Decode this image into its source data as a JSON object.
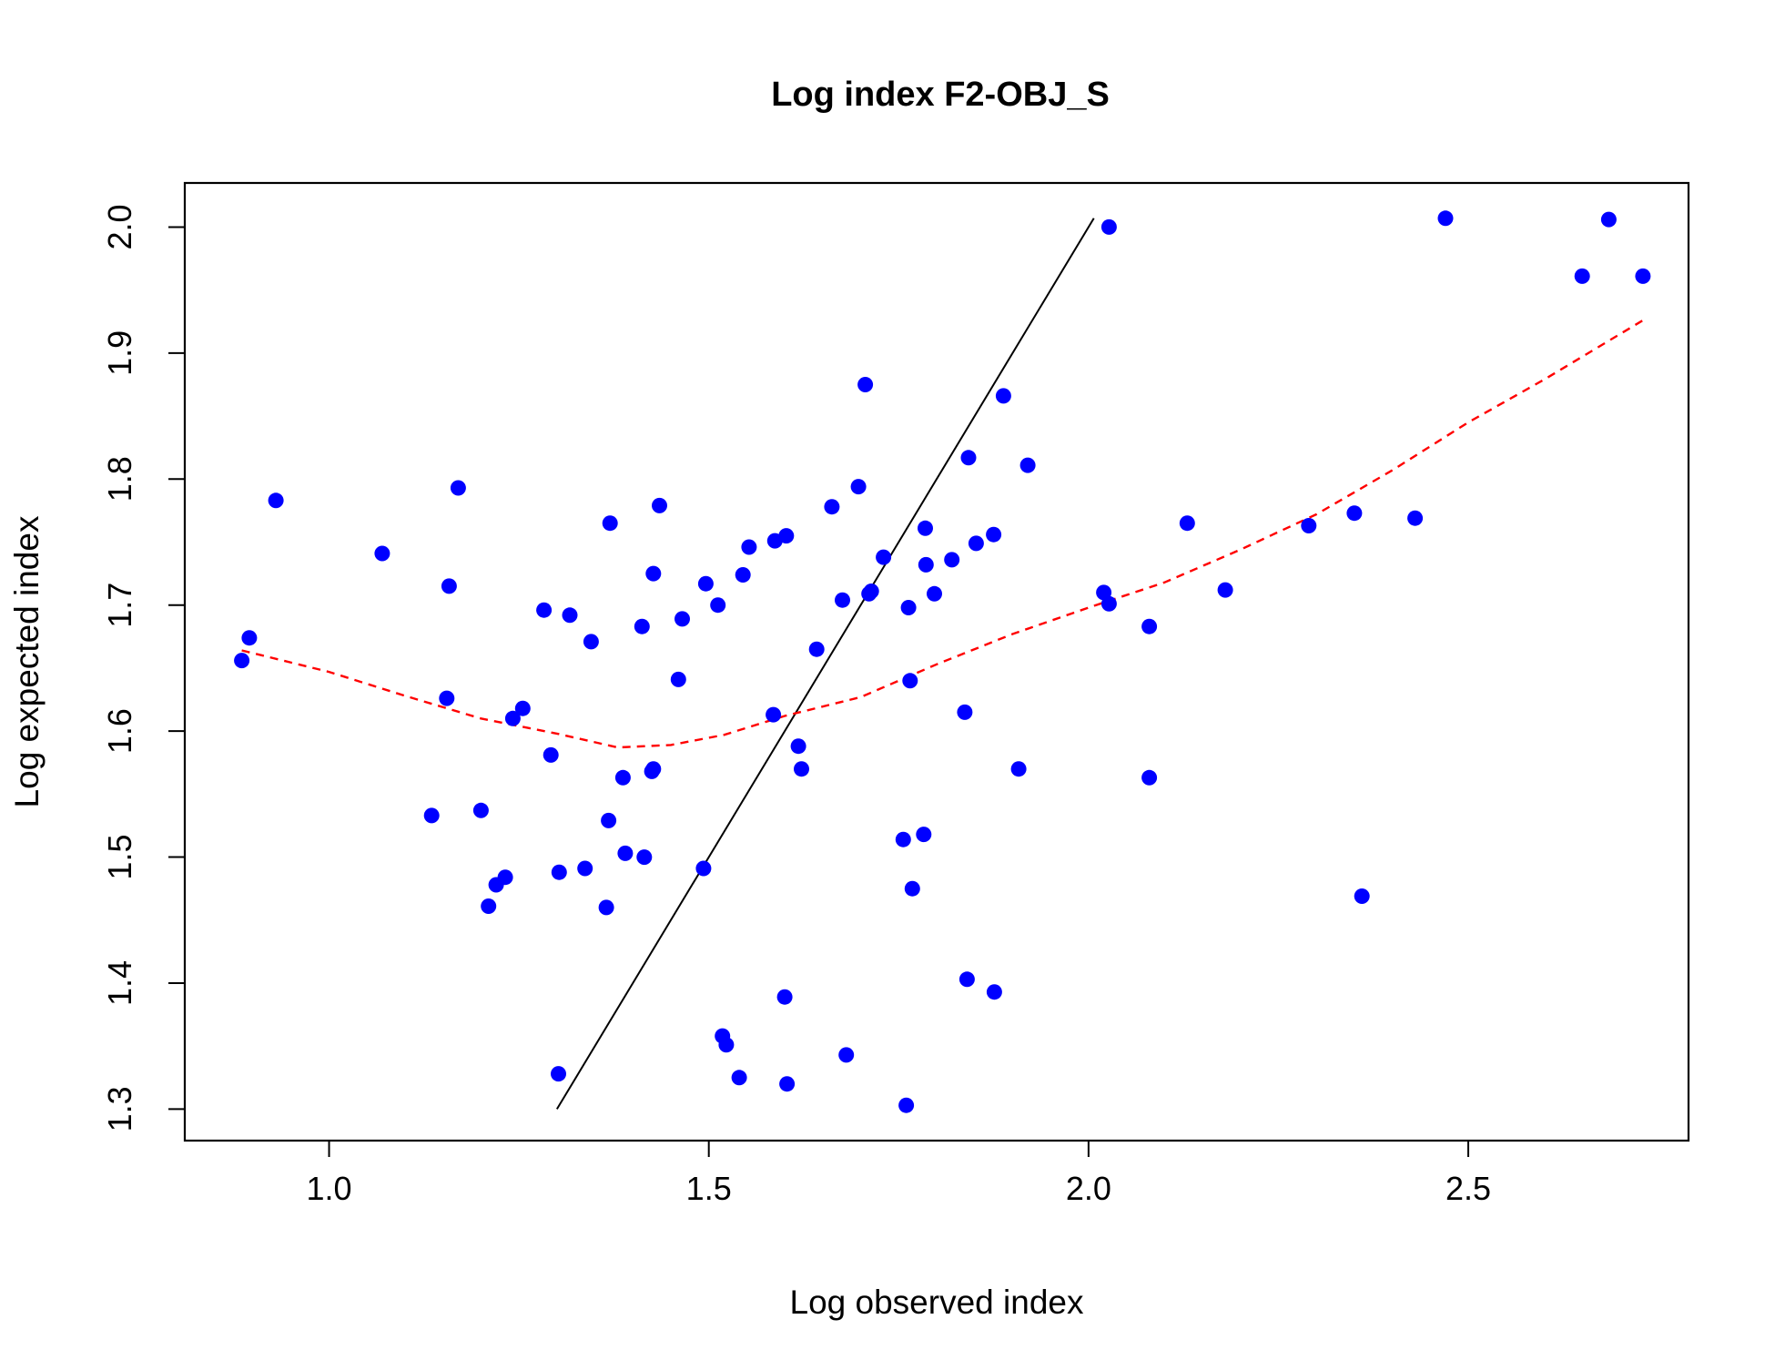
{
  "chart_data": {
    "type": "scatter",
    "title": "Log index F2-OBJ_S",
    "xlabel": "Log observed index",
    "ylabel": "Log expected index",
    "xlim": [
      0.81,
      2.79
    ],
    "ylim": [
      1.275,
      2.035
    ],
    "xticks": [
      1.0,
      1.5,
      2.0,
      2.5
    ],
    "xtick_labels": [
      "1.0",
      "1.5",
      "2.0",
      "2.5"
    ],
    "yticks": [
      1.3,
      1.4,
      1.5,
      1.6,
      1.7,
      1.8,
      1.9,
      2.0
    ],
    "ytick_labels": [
      "1.3",
      "1.4",
      "1.5",
      "1.6",
      "1.7",
      "1.8",
      "1.9",
      "2.0"
    ],
    "grid": false,
    "colors": {
      "points": "#0000ff",
      "identity_line": "#000000",
      "smooth_line": "#ff0000"
    },
    "points": {
      "x": [
        0.885,
        0.895,
        0.93,
        1.07,
        1.135,
        1.155,
        1.158,
        1.17,
        1.2,
        1.21,
        1.22,
        1.232,
        1.242,
        1.255,
        1.283,
        1.292,
        1.302,
        1.303,
        1.317,
        1.337,
        1.345,
        1.365,
        1.368,
        1.37,
        1.387,
        1.39,
        1.412,
        1.415,
        1.425,
        1.427,
        1.427,
        1.435,
        1.46,
        1.465,
        1.493,
        1.496,
        1.512,
        1.518,
        1.523,
        1.54,
        1.545,
        1.553,
        1.585,
        1.587,
        1.6,
        1.602,
        1.603,
        1.618,
        1.622,
        1.642,
        1.662,
        1.676,
        1.681,
        1.697,
        1.706,
        1.711,
        1.714,
        1.73,
        1.756,
        1.76,
        1.763,
        1.765,
        1.768,
        1.783,
        1.785,
        1.786,
        1.797,
        1.82,
        1.837,
        1.84,
        1.842,
        1.852,
        1.875,
        1.876,
        1.888,
        1.908,
        1.92,
        2.02,
        2.027,
        2.027,
        2.08,
        2.08,
        2.13,
        2.18,
        2.29,
        2.35,
        2.36,
        2.43,
        2.47,
        2.65,
        2.685,
        2.73
      ],
      "y": [
        1.656,
        1.674,
        1.783,
        1.741,
        1.533,
        1.626,
        1.715,
        1.793,
        1.537,
        1.461,
        1.478,
        1.484,
        1.61,
        1.618,
        1.696,
        1.581,
        1.328,
        1.488,
        1.692,
        1.491,
        1.671,
        1.46,
        1.529,
        1.765,
        1.563,
        1.503,
        1.683,
        1.5,
        1.568,
        1.57,
        1.725,
        1.779,
        1.641,
        1.689,
        1.491,
        1.717,
        1.7,
        1.358,
        1.351,
        1.325,
        1.724,
        1.746,
        1.613,
        1.751,
        1.389,
        1.755,
        1.32,
        1.588,
        1.57,
        1.665,
        1.778,
        1.704,
        1.343,
        1.794,
        1.875,
        1.709,
        1.711,
        1.738,
        1.514,
        1.303,
        1.698,
        1.64,
        1.475,
        1.518,
        1.761,
        1.732,
        1.709,
        1.736,
        1.615,
        1.403,
        1.817,
        1.749,
        1.756,
        1.393,
        1.866,
        1.57,
        1.811,
        1.71,
        2.0,
        1.701,
        1.563,
        1.683,
        1.765,
        1.712,
        1.763,
        1.773,
        1.469,
        1.769,
        2.007,
        1.961,
        2.006,
        1.961
      ]
    },
    "identity_line": {
      "x": [
        1.3,
        2.007
      ],
      "y": [
        1.3,
        2.007
      ]
    },
    "smooth_line": {
      "x": [
        0.885,
        1.0,
        1.1,
        1.2,
        1.3,
        1.38,
        1.45,
        1.52,
        1.6,
        1.7,
        1.8,
        1.9,
        2.0,
        2.1,
        2.2,
        2.3,
        2.4,
        2.5,
        2.6,
        2.73
      ],
      "y": [
        1.664,
        1.647,
        1.628,
        1.61,
        1.598,
        1.587,
        1.589,
        1.597,
        1.612,
        1.627,
        1.653,
        1.677,
        1.698,
        1.718,
        1.744,
        1.772,
        1.807,
        1.845,
        1.879,
        1.926
      ]
    }
  }
}
